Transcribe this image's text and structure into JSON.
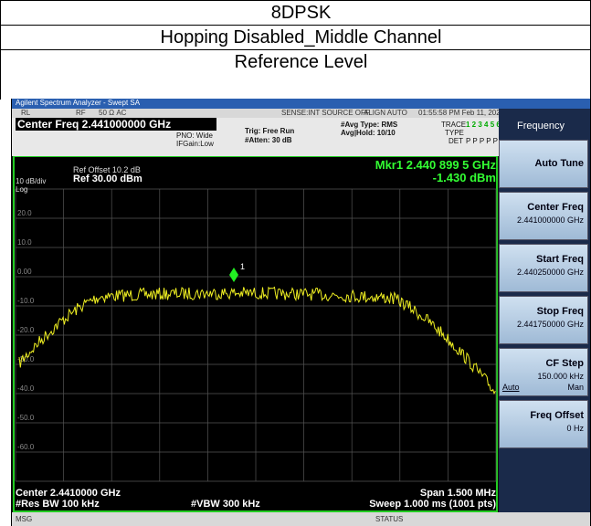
{
  "header": {
    "rows": [
      "8DPSK",
      "Hopping Disabled_Middle Channel",
      "Reference Level"
    ]
  },
  "analyzer": {
    "title_bar": "Agilent Spectrum Analyzer - Swept SA",
    "status_top": {
      "rl": "RL",
      "rf": "RF",
      "input": "50 Ω  AC",
      "sense": "SENSE:INT  SOURCE OFF",
      "align": "ALIGN AUTO",
      "time": "01:55:58 PM Feb 11, 2023"
    },
    "center_freq": "Center Freq 2.441000000 GHz",
    "pno": "PNO: Wide",
    "ifgain": "IFGain:Low",
    "trig": "Trig: Free Run",
    "atten": "#Atten: 30 dB",
    "avg_type": "#Avg Type: RMS",
    "avg_hold": "Avg|Hold: 10/10",
    "trace": "TRACE",
    "trace_nums": "1 2 3 4 5 6",
    "type": "TYPE",
    "det": "DET",
    "det_vals": "P P P P P P",
    "ref_offset": "Ref Offset 10.2 dB",
    "scale": "10 dB/div",
    "ref_level": "Ref 30.00 dBm",
    "log": "Log",
    "marker_freq": "Mkr1 2.440 899 5 GHz",
    "marker_level": "-1.430 dBm",
    "marker_label": "1",
    "y_labels": [
      "20.0",
      "10.0",
      "0.00",
      "-10.0",
      "-20.0",
      "-30.0",
      "-40.0",
      "-50.0",
      "-60.0"
    ],
    "center": "Center 2.4410000 GHz",
    "res_bw": "#Res BW 100 kHz",
    "vbw": "#VBW 300 kHz",
    "span": "Span 1.500 MHz",
    "sweep": "Sweep  1.000 ms (1001 pts)",
    "msg": "MSG",
    "status": "STATUS"
  },
  "softkeys": {
    "menu": "Frequency",
    "keys": [
      {
        "label": "Auto Tune"
      },
      {
        "label": "Center Freq",
        "value": "2.441000000 GHz"
      },
      {
        "label": "Start Freq",
        "value": "2.440250000 GHz"
      },
      {
        "label": "Stop Freq",
        "value": "2.441750000 GHz"
      },
      {
        "label": "CF Step",
        "value": "150.000 kHz",
        "auto": "Auto",
        "man": "Man"
      },
      {
        "label": "Freq Offset",
        "value": "0 Hz"
      }
    ]
  }
}
